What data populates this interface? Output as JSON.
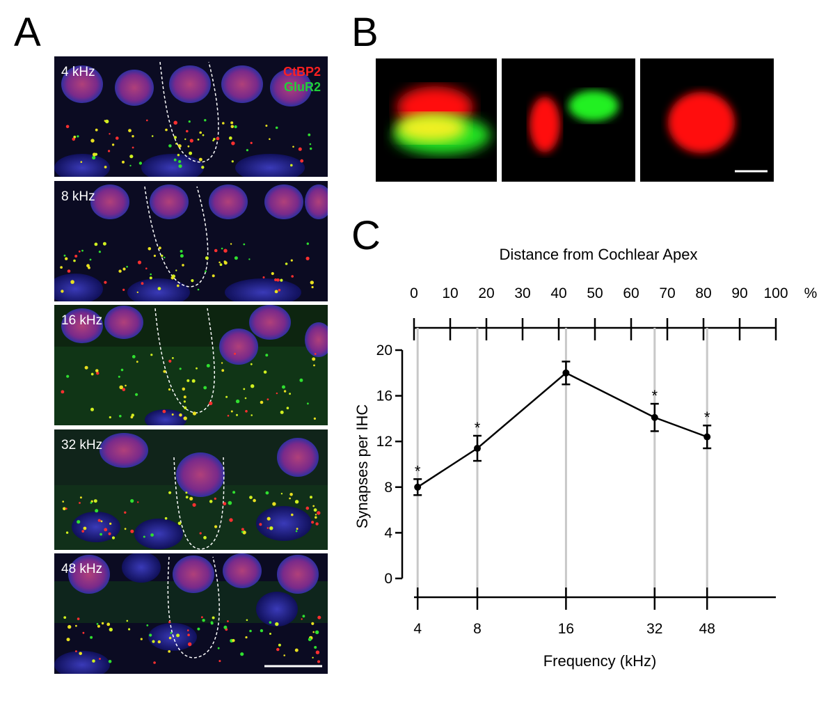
{
  "panel_letters": {
    "a": "A",
    "b": "B",
    "c": "C"
  },
  "panel_a": {
    "legend": {
      "ctbp2": "CtBP2",
      "glur2": "GluR2",
      "ctbp2_color": "#ff2020",
      "glur2_color": "#1fcf3a"
    },
    "images": [
      {
        "label": "4 kHz"
      },
      {
        "label": "8 kHz"
      },
      {
        "label": "16 kHz"
      },
      {
        "label": "32 kHz"
      },
      {
        "label": "48 kHz"
      }
    ]
  },
  "chart_data": {
    "type": "line",
    "top_axis": {
      "title": "Distance from Cochlear Apex",
      "ticks": [
        "0",
        "10",
        "20",
        "30",
        "40",
        "50",
        "60",
        "70",
        "80",
        "90",
        "100"
      ],
      "unit": "%",
      "range": [
        0,
        100
      ]
    },
    "ylabel": "Synapses per IHC",
    "ylim": [
      0,
      20
    ],
    "yticks": [
      "0",
      "4",
      "8",
      "12",
      "16",
      "20"
    ],
    "xlabel": "Frequency (kHz)",
    "categories": [
      "4",
      "8",
      "16",
      "32",
      "48"
    ],
    "distance_percent": [
      1,
      17.5,
      42,
      66.5,
      81
    ],
    "series": [
      {
        "values": [
          8.0,
          11.4,
          18.0,
          14.1,
          12.4
        ],
        "error": [
          0.7,
          1.1,
          1.0,
          1.2,
          1.0
        ],
        "significant": [
          true,
          true,
          false,
          true,
          true
        ]
      }
    ],
    "significance_marker": "*",
    "gridlines_at_points": true
  }
}
